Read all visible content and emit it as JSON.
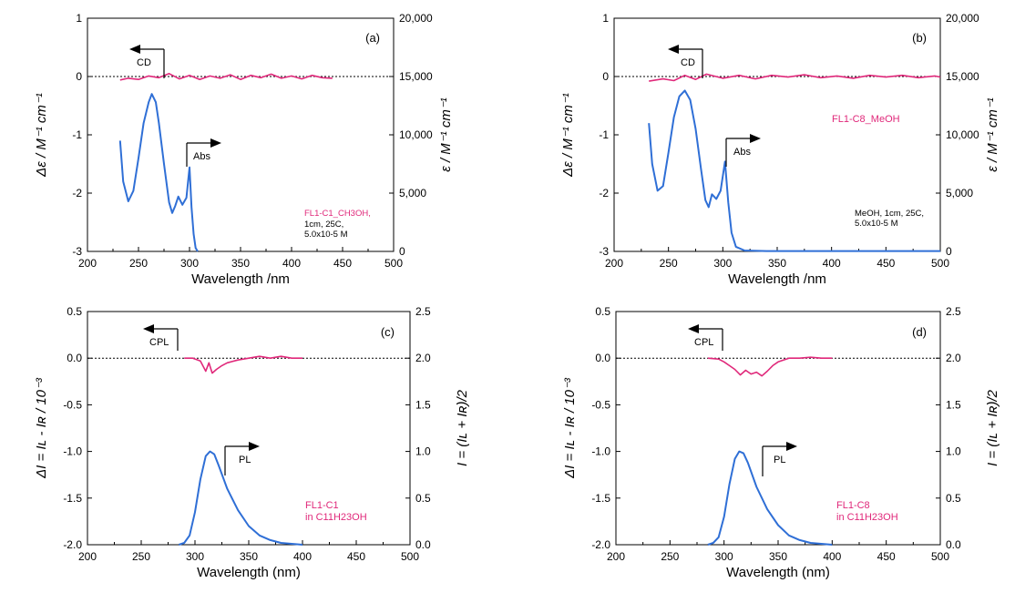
{
  "colors": {
    "spectrum_blue": "#2f6fd6",
    "signal_pink": "#e0287a",
    "axis": "#000000"
  },
  "chart_data": [
    {
      "type": "line",
      "panel_label": "(a)",
      "xlabel": "Wavelength /nm",
      "ylabel_left": "Δε / M⁻¹ cm⁻¹",
      "ylabel_right": "ε / M⁻¹ cm⁻¹",
      "xlim": [
        200,
        500
      ],
      "ylim_left": [
        -3,
        1
      ],
      "ylim_right": [
        0,
        20000
      ],
      "xticks": [
        200,
        250,
        300,
        350,
        400,
        450,
        500
      ],
      "yticks_left": [
        "1",
        "0",
        "-1",
        "-2",
        "-3"
      ],
      "yticks_right": [
        "20,000",
        "15,000",
        "10,000",
        "5,000",
        "0"
      ],
      "arrow_left_label": "CD",
      "arrow_right_label": "Abs",
      "sample_label": "FL1-C1_CH3OH,",
      "condition_lines": [
        "1cm, 25C,",
        "5.0x10-5 M"
      ],
      "left_series": {
        "name": "CD",
        "x": [
          232,
          240,
          250,
          260,
          270,
          280,
          290,
          300,
          310,
          320,
          330,
          340,
          350,
          360,
          370,
          380,
          390,
          400,
          410,
          420,
          430,
          440
        ],
        "y": [
          -0.06,
          -0.03,
          -0.05,
          0.01,
          -0.02,
          0.05,
          -0.04,
          0.02,
          -0.05,
          0.01,
          -0.03,
          0.03,
          -0.05,
          0.02,
          -0.02,
          0.04,
          -0.03,
          0.01,
          -0.04,
          0.02,
          -0.02,
          -0.03
        ]
      },
      "right_series": {
        "name": "Abs",
        "x": [
          232,
          235,
          240,
          245,
          250,
          255,
          260,
          263,
          267,
          270,
          275,
          280,
          283,
          286,
          289,
          293,
          297,
          300,
          302,
          304,
          306,
          308
        ],
        "y": [
          9500,
          6000,
          4300,
          5200,
          8000,
          11000,
          12800,
          13500,
          12800,
          11000,
          7500,
          4200,
          3300,
          3900,
          4700,
          4000,
          4600,
          7200,
          3800,
          1500,
          300,
          0
        ]
      }
    },
    {
      "type": "line",
      "panel_label": "(b)",
      "xlabel": "Wavelength /nm",
      "ylabel_left": "Δε / M⁻¹ cm⁻¹",
      "ylabel_right": "ε / M⁻¹ cm⁻¹",
      "xlim": [
        200,
        500
      ],
      "ylim_left": [
        -3,
        1
      ],
      "ylim_right": [
        0,
        20000
      ],
      "xticks": [
        200,
        250,
        300,
        350,
        400,
        450,
        500
      ],
      "yticks_left": [
        "1",
        "0",
        "-1",
        "-2",
        "-3"
      ],
      "yticks_right": [
        "20,000",
        "15,000",
        "10,000",
        "5,000",
        "0"
      ],
      "arrow_left_label": "CD",
      "arrow_right_label": "Abs",
      "sample_label": "FL1-C8_MeOH",
      "condition_lines": [
        "MeOH, 1cm, 25C,",
        "5.0x10-5 M"
      ],
      "left_series": {
        "name": "CD",
        "x": [
          232,
          245,
          255,
          265,
          275,
          285,
          300,
          315,
          330,
          345,
          360,
          375,
          390,
          405,
          420,
          435,
          450,
          465,
          480,
          495,
          500
        ],
        "y": [
          -0.08,
          -0.04,
          -0.07,
          0.02,
          -0.05,
          0.04,
          -0.03,
          0.02,
          -0.04,
          0.02,
          -0.01,
          0.03,
          -0.02,
          0.01,
          -0.03,
          0.02,
          -0.01,
          0.02,
          -0.02,
          0.01,
          -0.01
        ]
      },
      "right_series": {
        "name": "Abs",
        "x": [
          232,
          235,
          240,
          245,
          250,
          255,
          260,
          265,
          270,
          275,
          280,
          284,
          287,
          290,
          294,
          298,
          302,
          305,
          308,
          312,
          320,
          340,
          400,
          500
        ],
        "y": [
          11000,
          7500,
          5200,
          5600,
          8500,
          11500,
          13300,
          13800,
          13000,
          10500,
          7000,
          4400,
          3800,
          4900,
          4500,
          5200,
          7700,
          4200,
          1600,
          400,
          80,
          30,
          30,
          30
        ]
      }
    },
    {
      "type": "line",
      "panel_label": "(c)",
      "xlabel": "Wavelength (nm)",
      "ylabel_left": "ΔI = Iʟ - Iʀ / 10⁻³",
      "ylabel_right": "I = (Iʟ + Iʀ)/2",
      "xlim": [
        200,
        500
      ],
      "ylim_left": [
        -2.0,
        0.5
      ],
      "ylim_right": [
        0,
        2.5
      ],
      "xticks": [
        200,
        250,
        300,
        350,
        400,
        450,
        500
      ],
      "yticks_left": [
        "0.5",
        "0.0",
        "-0.5",
        "-1.0",
        "-1.5",
        "-2.0"
      ],
      "yticks_right": [
        "2.5",
        "2.0",
        "1.5",
        "1.0",
        "0.5",
        "0.0"
      ],
      "arrow_left_label": "CPL",
      "arrow_right_label": "PL",
      "sample_label": "FL1-C1",
      "condition_lines": [
        "in C11H23OH"
      ],
      "left_series": {
        "name": "CPL",
        "x": [
          290,
          298,
          305,
          310,
          313,
          316,
          320,
          325,
          330,
          340,
          350,
          360,
          370,
          380,
          390,
          400
        ],
        "y": [
          0.0,
          0.0,
          -0.03,
          -0.14,
          -0.05,
          -0.16,
          -0.12,
          -0.08,
          -0.05,
          -0.02,
          0.0,
          0.02,
          0.0,
          0.02,
          0.0,
          0.0
        ]
      },
      "right_series": {
        "name": "PL",
        "x": [
          285,
          290,
          295,
          300,
          305,
          310,
          314,
          318,
          322,
          330,
          340,
          350,
          360,
          370,
          380,
          390,
          400
        ],
        "y": [
          0.0,
          0.02,
          0.1,
          0.35,
          0.7,
          0.95,
          1.0,
          0.97,
          0.85,
          0.6,
          0.37,
          0.2,
          0.1,
          0.05,
          0.02,
          0.01,
          0.0
        ]
      }
    },
    {
      "type": "line",
      "panel_label": "(d)",
      "xlabel": "Wavelength (nm)",
      "ylabel_left": "ΔI = Iʟ - Iʀ / 10⁻³",
      "ylabel_right": "I = (Iʟ + Iʀ)/2",
      "xlim": [
        200,
        500
      ],
      "ylim_left": [
        -2.0,
        0.5
      ],
      "ylim_right": [
        0,
        2.5
      ],
      "xticks": [
        200,
        250,
        300,
        350,
        400,
        450,
        500
      ],
      "yticks_left": [
        "0.5",
        "0.0",
        "-0.5",
        "-1.0",
        "-1.5",
        "-2.0"
      ],
      "yticks_right": [
        "2.5",
        "2.0",
        "1.5",
        "1.0",
        "0.5",
        "0.0"
      ],
      "arrow_left_label": "CPL",
      "arrow_right_label": "PL",
      "sample_label": "FL1-C8",
      "condition_lines": [
        "in C11H23OH"
      ],
      "left_series": {
        "name": "CPL",
        "x": [
          285,
          295,
          300,
          305,
          310,
          315,
          320,
          325,
          330,
          335,
          340,
          345,
          350,
          360,
          370,
          380,
          390,
          400
        ],
        "y": [
          0.0,
          -0.01,
          -0.04,
          -0.08,
          -0.12,
          -0.18,
          -0.13,
          -0.17,
          -0.15,
          -0.19,
          -0.14,
          -0.08,
          -0.04,
          0.0,
          0.0,
          0.01,
          0.0,
          0.0
        ]
      },
      "right_series": {
        "name": "PL",
        "x": [
          285,
          290,
          295,
          300,
          305,
          310,
          314,
          318,
          322,
          330,
          340,
          350,
          360,
          370,
          380,
          390,
          400
        ],
        "y": [
          0.0,
          0.02,
          0.08,
          0.3,
          0.65,
          0.92,
          1.0,
          0.98,
          0.88,
          0.62,
          0.38,
          0.21,
          0.1,
          0.05,
          0.02,
          0.01,
          0.0
        ]
      }
    }
  ]
}
